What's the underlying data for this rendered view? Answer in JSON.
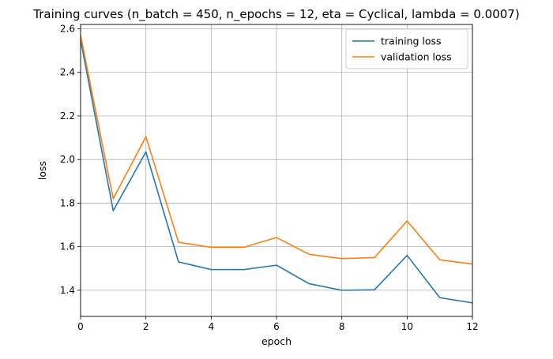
{
  "chart_data": {
    "type": "line",
    "title": "Training curves (n_batch = 450, n_epochs = 12, eta = Cyclical, lambda = 0.0007)",
    "xlabel": "epoch",
    "ylabel": "loss",
    "xlim": [
      0,
      12
    ],
    "ylim": [
      1.28,
      2.62
    ],
    "xticks": [
      0,
      2,
      4,
      6,
      8,
      10,
      12
    ],
    "yticks": [
      1.4,
      1.6,
      1.8,
      2.0,
      2.2,
      2.4,
      2.6
    ],
    "ytick_labels": [
      "1.4",
      "1.6",
      "1.8",
      "2.0",
      "2.2",
      "2.4",
      "2.6"
    ],
    "grid": true,
    "legend_position": "top-right",
    "x": [
      0,
      1,
      2,
      3,
      4,
      5,
      6,
      7,
      8,
      9,
      10,
      11,
      12
    ],
    "series": [
      {
        "name": "training loss",
        "color": "#1f77b4",
        "values": [
          2.55,
          1.765,
          2.035,
          1.53,
          1.495,
          1.495,
          1.515,
          1.43,
          1.4,
          1.402,
          1.56,
          1.366,
          1.342
        ]
      },
      {
        "name": "validation loss",
        "color": "#ff7f0e",
        "values": [
          2.57,
          1.82,
          2.105,
          1.62,
          1.597,
          1.597,
          1.642,
          1.565,
          1.545,
          1.55,
          1.718,
          1.54,
          1.52
        ]
      }
    ]
  }
}
